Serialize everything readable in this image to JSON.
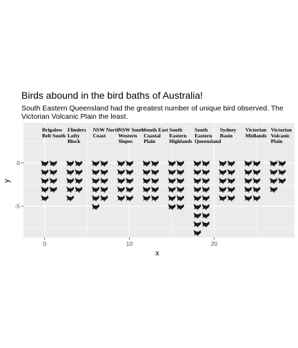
{
  "chart_data": {
    "type": "pictogram",
    "title": "Birds abound in the bird baths of Australia!",
    "subtitle_lines": [
      "South Eastern Queensland had the greatest number of unique bird observed. The",
      "Victorian Volcanic Plain the least."
    ],
    "xlabel": "x",
    "ylabel": "y",
    "xlim": [
      -2.5,
      29.5
    ],
    "ylim": [
      -8.6,
      4.6
    ],
    "x_ticks": [
      0,
      10,
      20
    ],
    "y_ticks": [
      0,
      -5
    ],
    "grid": true,
    "icon": "bird-icon",
    "columns_per_group": 2,
    "colors": {
      "panel": "#ebebeb",
      "grid": "#ffffff",
      "icon": "#1a1a1a"
    },
    "groups": [
      {
        "label": [
          "Brigalow",
          "Belt South"
        ],
        "count": 9
      },
      {
        "label": [
          "Flinders",
          "Lofty",
          "Block"
        ],
        "count": 9
      },
      {
        "label": [
          "NSW North",
          "Coast"
        ],
        "count": 11
      },
      {
        "label": [
          "NSW South",
          "Western",
          "Slopes"
        ],
        "count": 10
      },
      {
        "label": [
          "South East",
          "Coastal",
          "Plain"
        ],
        "count": 10
      },
      {
        "label": [
          "South",
          "Eastern",
          "Highlands"
        ],
        "count": 12
      },
      {
        "label": [
          "South",
          "Eastern",
          "Queensland"
        ],
        "count": 17
      },
      {
        "label": [
          "Sydney",
          "Basin"
        ],
        "count": 10
      },
      {
        "label": [
          "Victorian",
          "Midlands"
        ],
        "count": 10
      },
      {
        "label": [
          "Victorian",
          "Volcanic",
          "Plain"
        ],
        "count": 7
      }
    ]
  }
}
